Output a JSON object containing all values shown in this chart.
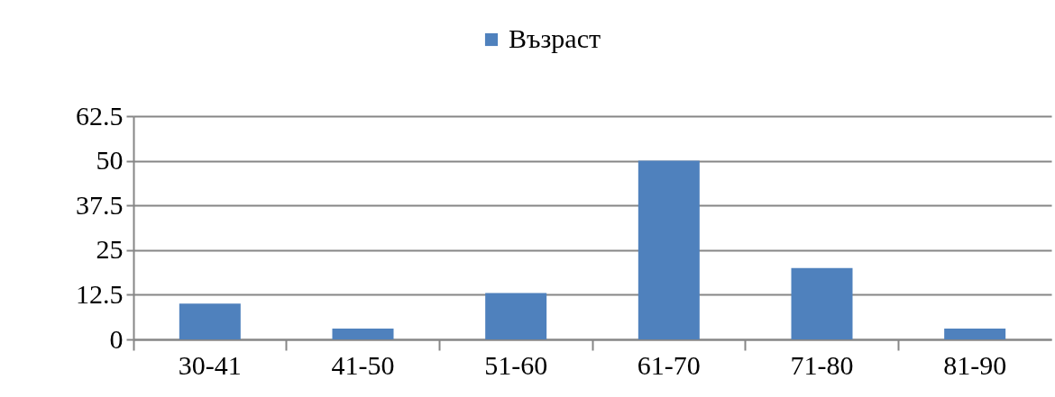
{
  "chart_data": {
    "type": "bar",
    "categories": [
      "30-41",
      "41-50",
      "51-60",
      "61-70",
      "71-80",
      "81-90"
    ],
    "series": [
      {
        "name": "Възраст",
        "color": "#4f81bd",
        "values": [
          10,
          3,
          13,
          50,
          20,
          3
        ]
      }
    ],
    "ylim": [
      0,
      62.5
    ],
    "yticks": [
      0,
      12.5,
      25,
      37.5,
      50,
      62.5
    ],
    "grid": "y",
    "legend": "top"
  }
}
